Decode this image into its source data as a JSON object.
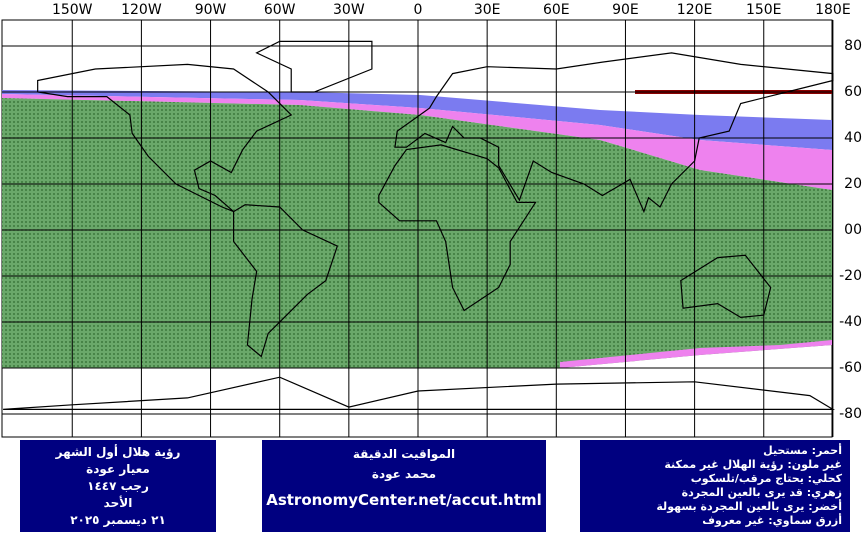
{
  "map": {
    "lon_ticks": [
      {
        "value": -150,
        "label": "150W"
      },
      {
        "value": -120,
        "label": "120W"
      },
      {
        "value": -90,
        "label": "90W"
      },
      {
        "value": -60,
        "label": "60W"
      },
      {
        "value": -30,
        "label": "30W"
      },
      0,
      {
        "value": 30,
        "label": "30E"
      },
      {
        "value": 60,
        "label": "60E"
      },
      {
        "value": 90,
        "label": "90E"
      },
      {
        "value": 120,
        "label": "120E"
      },
      {
        "value": 150,
        "label": "150E"
      },
      {
        "value": 180,
        "label": "180E"
      }
    ],
    "lat_ticks": [
      80,
      60,
      40,
      20,
      {
        "value": 0,
        "label": "00"
      },
      -20,
      -40,
      -60,
      -80
    ]
  },
  "info_left": [
    "رؤية هلال أول الشهر",
    "معيار عودة",
    "رجب ١٤٤٧",
    "الأحد",
    "٢١ ديسمبر ٢٠٢٥"
  ],
  "info_center": [
    "المواقيت الدقيقة",
    "محمد عودة",
    "AstronomyCenter.net/accut.html"
  ],
  "legend": [
    "أحمر: مستحيل",
    "غير ملون: رؤية الهلال غير ممكنة",
    "كحلي: يحتاج مرقب/تلسكوب",
    "زهري: قد يرى بالعين المجردة",
    "أخضر: يرى بالعين المجردة بسهولة",
    "أزرق سماوي: غير معروف"
  ]
}
